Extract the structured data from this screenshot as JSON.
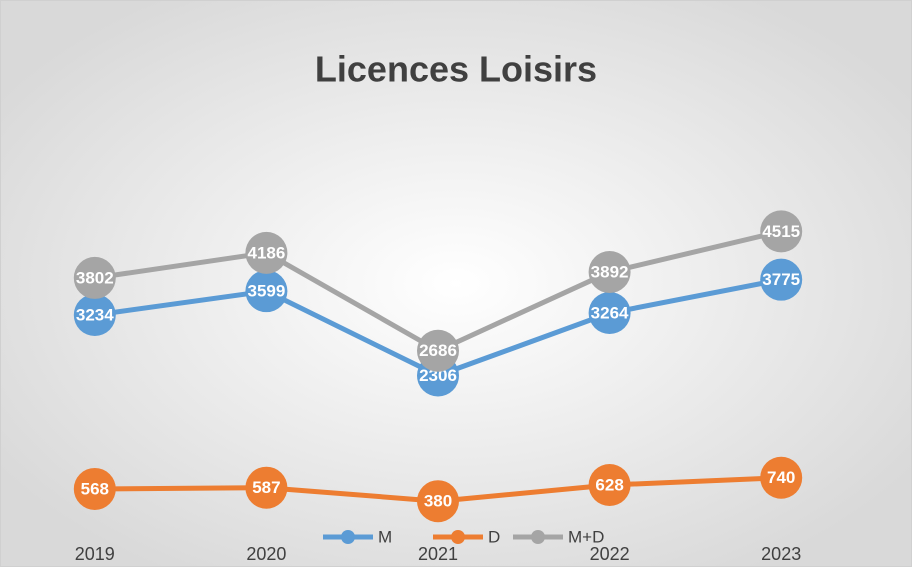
{
  "chart_data": {
    "type": "line",
    "title": "Licences Loisirs",
    "categories": [
      "2019",
      "2020",
      "2021",
      "2022",
      "2023"
    ],
    "series": [
      {
        "name": "M",
        "color": "#5b9bd5",
        "values": [
          3234,
          3599,
          2306,
          3264,
          3775
        ]
      },
      {
        "name": "D",
        "color": "#ed7d31",
        "values": [
          568,
          587,
          380,
          628,
          740
        ]
      },
      {
        "name": "M+D",
        "color": "#a5a5a5",
        "values": [
          3802,
          4186,
          2686,
          3892,
          4515
        ]
      }
    ],
    "ylim": [
      0,
      8000
    ],
    "legend": "bottom"
  }
}
